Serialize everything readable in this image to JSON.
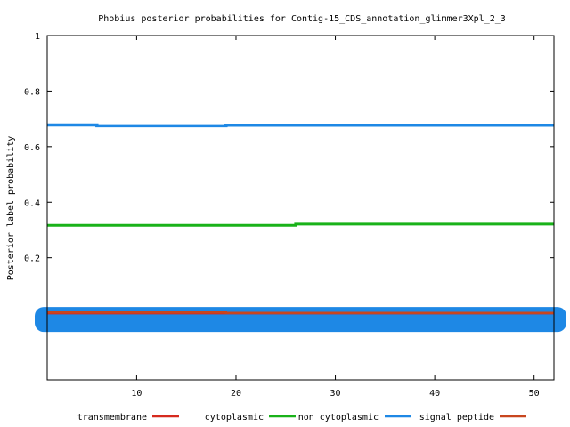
{
  "chart_data": {
    "type": "line",
    "title": "Phobius posterior probabilities for Contig-15_CDS_annotation_glimmer3Xpl_2_3",
    "xlabel": "",
    "ylabel": "Posterior label probability",
    "xlim": [
      1,
      52
    ],
    "ylim": [
      -0.24,
      1
    ],
    "x_ticks": [
      10,
      20,
      30,
      40,
      50
    ],
    "y_ticks": [
      0.2,
      0.4,
      0.6,
      0.8,
      1
    ],
    "x_tick_labels": [
      "10",
      "20",
      "30",
      "40",
      "50"
    ],
    "y_tick_labels": [
      "0.2",
      "0.4",
      "0.6",
      "0.8",
      "1"
    ],
    "grid": false,
    "legend_position": "bottom",
    "series": [
      {
        "name": "transmembrane",
        "color": "#d62a1e",
        "points": [
          [
            1,
            0.0
          ],
          [
            52,
            0.0
          ]
        ]
      },
      {
        "name": "cytoplasmic",
        "color": "#19b219",
        "points": [
          [
            1,
            0.317
          ],
          [
            26,
            0.317
          ],
          [
            26,
            0.321
          ],
          [
            52,
            0.321
          ]
        ]
      },
      {
        "name": "non cytoplasmic",
        "color": "#1e88e5",
        "points": [
          [
            1,
            0.678
          ],
          [
            6,
            0.678
          ],
          [
            6,
            0.675
          ],
          [
            19,
            0.675
          ],
          [
            19,
            0.677
          ],
          [
            52,
            0.677
          ]
        ]
      },
      {
        "name": "signal peptide",
        "color": "#c8461e",
        "points": [
          [
            1,
            0.003
          ],
          [
            19,
            0.003
          ],
          [
            19,
            0.001
          ],
          [
            52,
            0.001
          ]
        ]
      }
    ]
  }
}
